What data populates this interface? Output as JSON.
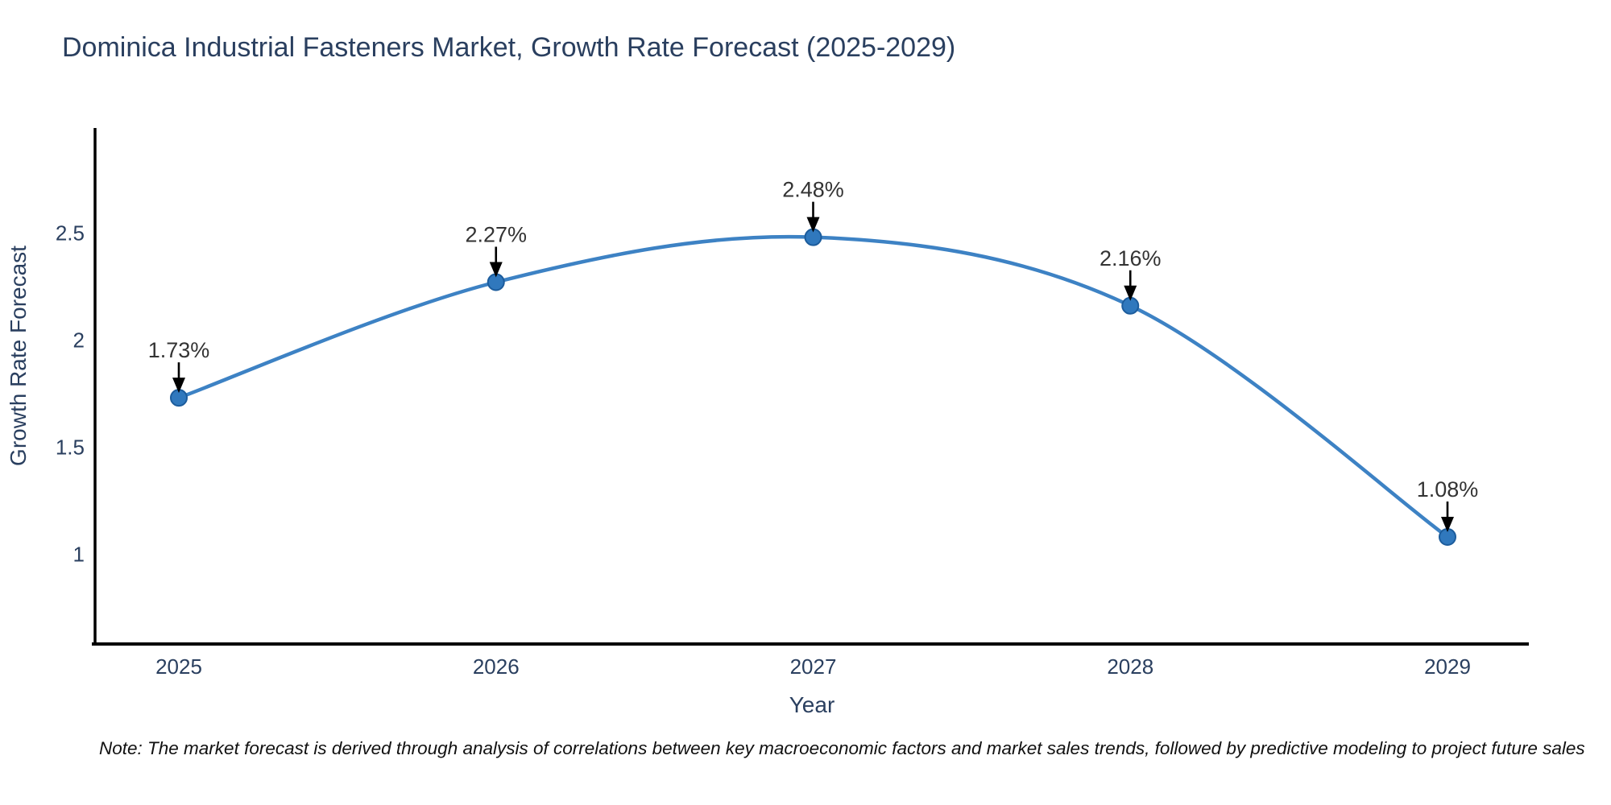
{
  "chart_data": {
    "type": "line",
    "title": "Dominica Industrial Fasteners Market, Growth Rate Forecast (2025-2029)",
    "x": [
      "2025",
      "2026",
      "2027",
      "2028",
      "2029"
    ],
    "series": [
      {
        "name": "Growth Rate Forecast",
        "values": [
          1.73,
          2.27,
          2.48,
          2.16,
          1.08
        ]
      }
    ],
    "annotations": [
      "1.73%",
      "2.27%",
      "2.48%",
      "2.16%",
      "1.08%"
    ],
    "xlabel": "Year",
    "ylabel": "Growth Rate Forecast",
    "yticks": [
      1,
      1.5,
      2,
      2.5
    ],
    "ylim": [
      0.58,
      2.99
    ],
    "grid": false,
    "legend_visible": false,
    "colors": {
      "line": "#3d82c4",
      "marker_fill": "#3078bd",
      "marker_edge": "#1c5c9c",
      "axis_line": "#000000",
      "axis_text": "#2a3f5f",
      "annotation_text": "#333333",
      "arrow": "#000000"
    }
  },
  "note": "Note: The market forecast is derived through analysis of correlations between key macroeconomic factors and market sales trends, followed by predictive modeling to project future sales"
}
